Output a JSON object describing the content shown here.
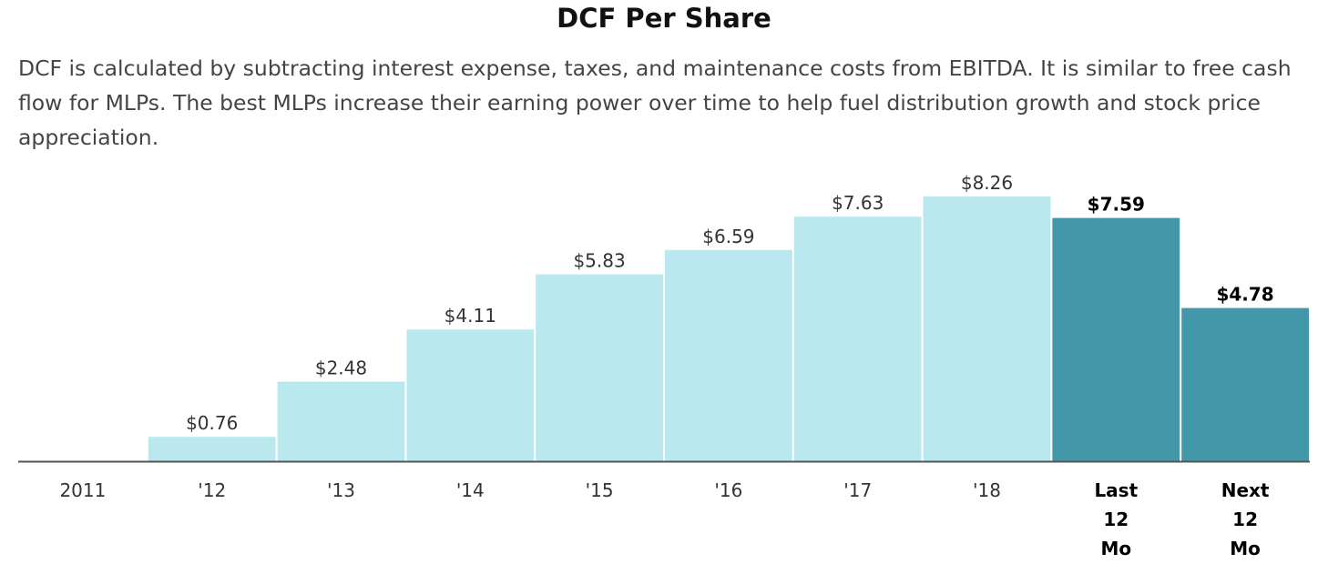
{
  "chart_data": {
    "type": "bar",
    "title": "DCF Per Share",
    "subtitle": "DCF is calculated by subtracting interest expense, taxes, and maintenance costs from EBITDA. It is similar to free cash flow for MLPs. The best MLPs increase their earning power over time to help fuel distribution growth and stock price appreciation.",
    "categories": [
      "2011",
      "'12",
      "'13",
      "'14",
      "'15",
      "'16",
      "'17",
      "'18",
      "Last 12 Mo",
      "Next 12 Mo"
    ],
    "values": [
      0,
      0.76,
      2.48,
      4.11,
      5.83,
      6.59,
      7.63,
      8.26,
      7.59,
      4.78
    ],
    "value_labels": [
      "",
      "$0.76",
      "$2.48",
      "$4.11",
      "$5.83",
      "$6.59",
      "$7.63",
      "$8.26",
      "$7.59",
      "$4.78"
    ],
    "highlighted": [
      false,
      false,
      false,
      false,
      false,
      false,
      false,
      false,
      true,
      true
    ],
    "ylim": [
      0,
      8.26
    ],
    "grid": false,
    "colors": {
      "bar": "#b9e8ee",
      "highlight": "#4298a9",
      "axis": "#555555"
    }
  }
}
